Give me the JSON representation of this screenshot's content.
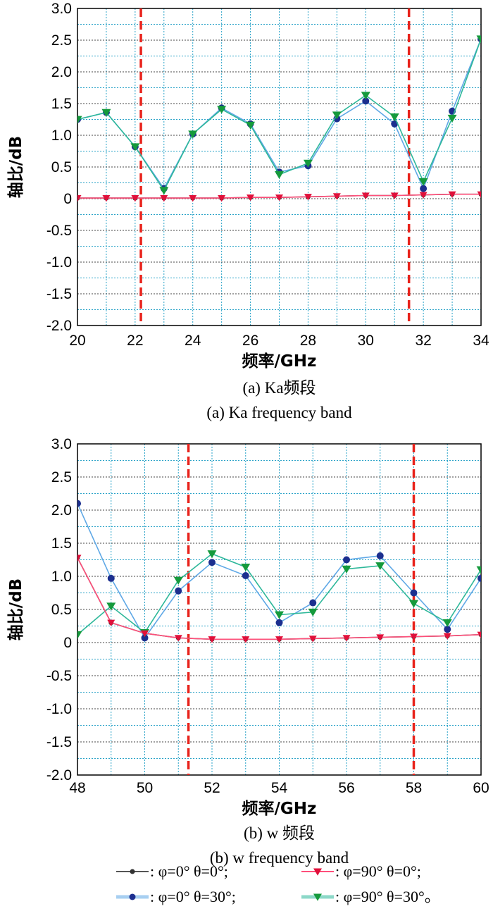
{
  "chart_data": [
    {
      "type": "line",
      "caption_cn": "(a) Ka频段",
      "caption_en": "(a) Ka frequency band",
      "xlabel": "频率/GHz",
      "ylabel": "轴比/dB",
      "xlim": [
        20,
        34
      ],
      "ylim": [
        -2.0,
        3.0
      ],
      "xticks": [
        "20",
        "22",
        "24",
        "26",
        "28",
        "30",
        "32",
        "34"
      ],
      "yticks": [
        "-2.0",
        "-1.5",
        "-1.0",
        "-0.5",
        "0",
        "0.5",
        "1.0",
        "1.5",
        "2.0",
        "2.5",
        "3.0"
      ],
      "grid": true,
      "band_markers": [
        22.2,
        31.5
      ],
      "x": [
        20,
        21,
        22,
        23,
        24,
        25,
        26,
        27,
        28,
        29,
        30,
        31,
        32,
        33,
        34
      ],
      "series": [
        {
          "name": "φ=0° θ=0°",
          "values": [
            0.01,
            0.01,
            0.01,
            0.01,
            0.01,
            0.01,
            0.02,
            0.02,
            0.03,
            0.04,
            0.05,
            0.05,
            0.06,
            0.07,
            0.07
          ]
        },
        {
          "name": "φ=90° θ=0°",
          "values": [
            0.01,
            0.01,
            0.01,
            0.01,
            0.01,
            0.01,
            0.02,
            0.02,
            0.03,
            0.04,
            0.05,
            0.05,
            0.06,
            0.07,
            0.07
          ]
        },
        {
          "name": "φ=0° θ=30°",
          "values": [
            1.25,
            1.36,
            0.82,
            0.16,
            1.02,
            1.43,
            1.18,
            0.42,
            0.52,
            1.26,
            1.54,
            1.18,
            0.16,
            1.38,
            2.52
          ]
        },
        {
          "name": "φ=90° θ=30°",
          "values": [
            1.25,
            1.36,
            0.82,
            0.13,
            1.02,
            1.41,
            1.16,
            0.38,
            0.56,
            1.32,
            1.63,
            1.29,
            0.27,
            1.27,
            2.52
          ]
        }
      ]
    },
    {
      "type": "line",
      "caption_cn": "(b) w 频段",
      "caption_en": "(b) w frequency band",
      "xlabel": "频率/GHz",
      "ylabel": "轴比/dB",
      "xlim": [
        48,
        60
      ],
      "ylim": [
        -2.0,
        3.0
      ],
      "xticks": [
        "48",
        "50",
        "52",
        "54",
        "56",
        "58",
        "60"
      ],
      "yticks": [
        "-2.0",
        "-1.5",
        "-1.0",
        "-0.5",
        "0",
        "0.5",
        "1.0",
        "1.5",
        "2.0",
        "2.5",
        "3.0"
      ],
      "grid": true,
      "band_markers": [
        51.3,
        58.0
      ],
      "x": [
        48,
        49,
        50,
        51,
        52,
        53,
        54,
        55,
        56,
        57,
        58,
        59,
        60
      ],
      "series": [
        {
          "name": "φ=0° θ=0°",
          "values": [
            1.28,
            0.3,
            0.14,
            0.07,
            0.05,
            0.05,
            0.05,
            0.06,
            0.07,
            0.08,
            0.09,
            0.1,
            0.12
          ]
        },
        {
          "name": "φ=90° θ=0°",
          "values": [
            1.28,
            0.3,
            0.14,
            0.07,
            0.05,
            0.05,
            0.05,
            0.06,
            0.07,
            0.08,
            0.09,
            0.1,
            0.12
          ]
        },
        {
          "name": "φ=0° θ=30°",
          "values": [
            2.1,
            0.97,
            0.07,
            0.78,
            1.21,
            1.01,
            0.3,
            0.6,
            1.25,
            1.31,
            0.75,
            0.2,
            0.97
          ]
        },
        {
          "name": "φ=90° θ=30°",
          "values": [
            0.12,
            0.55,
            0.15,
            0.94,
            1.34,
            1.14,
            0.42,
            0.46,
            1.11,
            1.16,
            0.59,
            0.3,
            1.1
          ]
        }
      ]
    }
  ],
  "legend": {
    "items": [
      {
        "label": ": φ=0° θ=0°;",
        "color": "#555555",
        "marker": "circle"
      },
      {
        "label": ": φ=90° θ=0°;",
        "color": "#ff4f7a",
        "marker": "triangle-down"
      },
      {
        "label": ": φ=0° θ=30°;",
        "color": "#5fa8e6",
        "marker": "circle"
      },
      {
        "label": ": φ=90° θ=30°。",
        "color": "#2eb89a",
        "marker": "triangle-down"
      }
    ]
  },
  "styles": {
    "grid_color": "#2aa3c8",
    "band_marker_color": "#e8221b",
    "series_colors": [
      "#555555",
      "#ff4f7a",
      "#5fa8e6",
      "#2eb89a"
    ],
    "marker_colors": [
      "#333333",
      "#e0103a",
      "#1c2f8f",
      "#159a3c"
    ]
  }
}
